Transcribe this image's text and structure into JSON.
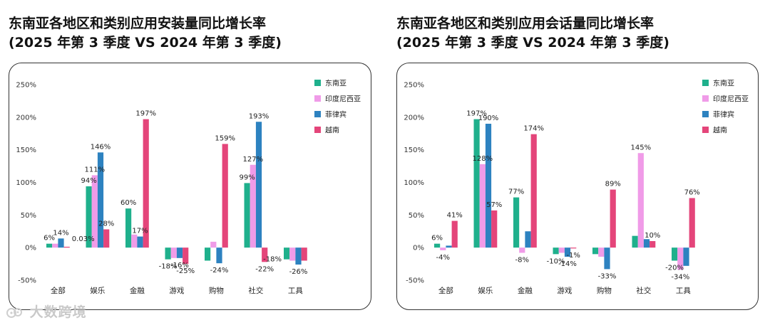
{
  "watermark": "大数跨境",
  "colors": {
    "sea": "#1fb08c",
    "indonesia": "#f09be8",
    "philippines": "#2d82c0",
    "vietnam": "#e4457a"
  },
  "chart_data": [
    {
      "type": "bar",
      "title_line1": "东南亚各地区和类别应用安装量同比增长率",
      "title_line2": "(2025 年第 3 季度 VS 2024 年第 3 季度)",
      "categories": [
        "全部",
        "娱乐",
        "金融",
        "游戏",
        "购物",
        "社交",
        "工具"
      ],
      "yticks": [
        "250%",
        "200%",
        "150%",
        "100%",
        "50%",
        "0%",
        "-50%"
      ],
      "ylim": [
        -50,
        250
      ],
      "series": [
        {
          "name": "东南亚",
          "values": [
            6,
            94,
            60,
            -18,
            -20,
            99,
            -18
          ]
        },
        {
          "name": "印度尼西亚",
          "values": [
            6,
            111,
            20,
            -16,
            9,
            127,
            -20
          ]
        },
        {
          "name": "菲律宾",
          "values": [
            14,
            146,
            17,
            -16,
            -24,
            193,
            -26
          ]
        },
        {
          "name": "越南",
          "values": [
            0.03,
            28,
            197,
            -25,
            159,
            -22,
            -20
          ]
        }
      ],
      "labels": [
        {
          "text": "6%",
          "cat": 0,
          "series": 0,
          "pos": "above"
        },
        {
          "text": "14%",
          "cat": 0,
          "series": 2,
          "pos": "above"
        },
        {
          "text": "0.03%",
          "cat": 0,
          "series": 3,
          "pos": "right"
        },
        {
          "text": "94%",
          "cat": 1,
          "series": 0,
          "pos": "above"
        },
        {
          "text": "111%",
          "cat": 1,
          "series": 1,
          "pos": "above"
        },
        {
          "text": "146%",
          "cat": 1,
          "series": 2,
          "pos": "above"
        },
        {
          "text": "28%",
          "cat": 1,
          "series": 3,
          "pos": "above"
        },
        {
          "text": "60%",
          "cat": 2,
          "series": 0,
          "pos": "above"
        },
        {
          "text": "17%",
          "cat": 2,
          "series": 2,
          "pos": "above"
        },
        {
          "text": "197%",
          "cat": 2,
          "series": 3,
          "pos": "above"
        },
        {
          "text": "-18%",
          "cat": 3,
          "series": 0,
          "pos": "below"
        },
        {
          "text": "-16%",
          "cat": 3,
          "series": 2,
          "pos": "below"
        },
        {
          "text": "-25%",
          "cat": 3,
          "series": 3,
          "pos": "below"
        },
        {
          "text": "-24%",
          "cat": 4,
          "series": 2,
          "pos": "below"
        },
        {
          "text": "159%",
          "cat": 4,
          "series": 3,
          "pos": "above"
        },
        {
          "text": "99%",
          "cat": 5,
          "series": 0,
          "pos": "above"
        },
        {
          "text": "127%",
          "cat": 5,
          "series": 1,
          "pos": "above"
        },
        {
          "text": "193%",
          "cat": 5,
          "series": 2,
          "pos": "above"
        },
        {
          "text": "-22%",
          "cat": 5,
          "series": 3,
          "pos": "below"
        },
        {
          "text": "-18%",
          "cat": 6,
          "series": 0,
          "pos": "left"
        },
        {
          "text": "-26%",
          "cat": 6,
          "series": 2,
          "pos": "below"
        }
      ]
    },
    {
      "type": "bar",
      "title_line1": "东南亚各地区和类别应用会话量同比增长率",
      "title_line2": "(2025 年第 3 季度 VS 2024 年第 3 季度)",
      "categories": [
        "全部",
        "娱乐",
        "金融",
        "游戏",
        "购物",
        "社交",
        "工具"
      ],
      "yticks": [
        "250%",
        "200%",
        "150%",
        "100%",
        "50%",
        "0%",
        "-50%"
      ],
      "ylim": [
        -50,
        250
      ],
      "series": [
        {
          "name": "东南亚",
          "values": [
            6,
            197,
            77,
            -10,
            -10,
            18,
            -20
          ]
        },
        {
          "name": "印度尼西亚",
          "values": [
            -4,
            128,
            -8,
            -8,
            -14,
            145,
            -34
          ]
        },
        {
          "name": "菲律宾",
          "values": [
            3,
            190,
            25,
            -14,
            -33,
            13,
            -28
          ]
        },
        {
          "name": "越南",
          "values": [
            41,
            57,
            174,
            -1,
            89,
            10,
            76
          ]
        }
      ],
      "labels": [
        {
          "text": "6%",
          "cat": 0,
          "series": 0,
          "pos": "above"
        },
        {
          "text": "-4%",
          "cat": 0,
          "series": 1,
          "pos": "below"
        },
        {
          "text": "41%",
          "cat": 0,
          "series": 3,
          "pos": "above"
        },
        {
          "text": "197%",
          "cat": 1,
          "series": 0,
          "pos": "above"
        },
        {
          "text": "128%",
          "cat": 1,
          "series": 1,
          "pos": "above"
        },
        {
          "text": "190%",
          "cat": 1,
          "series": 2,
          "pos": "above"
        },
        {
          "text": "57%",
          "cat": 1,
          "series": 3,
          "pos": "above"
        },
        {
          "text": "77%",
          "cat": 2,
          "series": 0,
          "pos": "above"
        },
        {
          "text": "-8%",
          "cat": 2,
          "series": 1,
          "pos": "below"
        },
        {
          "text": "174%",
          "cat": 2,
          "series": 3,
          "pos": "above"
        },
        {
          "text": "-10%",
          "cat": 3,
          "series": 0,
          "pos": "below"
        },
        {
          "text": "-14%",
          "cat": 3,
          "series": 2,
          "pos": "below"
        },
        {
          "text": "-1%",
          "cat": 3,
          "series": 3,
          "pos": "below"
        },
        {
          "text": "-33%",
          "cat": 4,
          "series": 2,
          "pos": "below"
        },
        {
          "text": "89%",
          "cat": 4,
          "series": 3,
          "pos": "above"
        },
        {
          "text": "145%",
          "cat": 5,
          "series": 1,
          "pos": "above"
        },
        {
          "text": "10%",
          "cat": 5,
          "series": 3,
          "pos": "above"
        },
        {
          "text": "-20%",
          "cat": 6,
          "series": 0,
          "pos": "below"
        },
        {
          "text": "-34%",
          "cat": 6,
          "series": 1,
          "pos": "below"
        },
        {
          "text": "76%",
          "cat": 6,
          "series": 3,
          "pos": "above"
        }
      ]
    }
  ]
}
